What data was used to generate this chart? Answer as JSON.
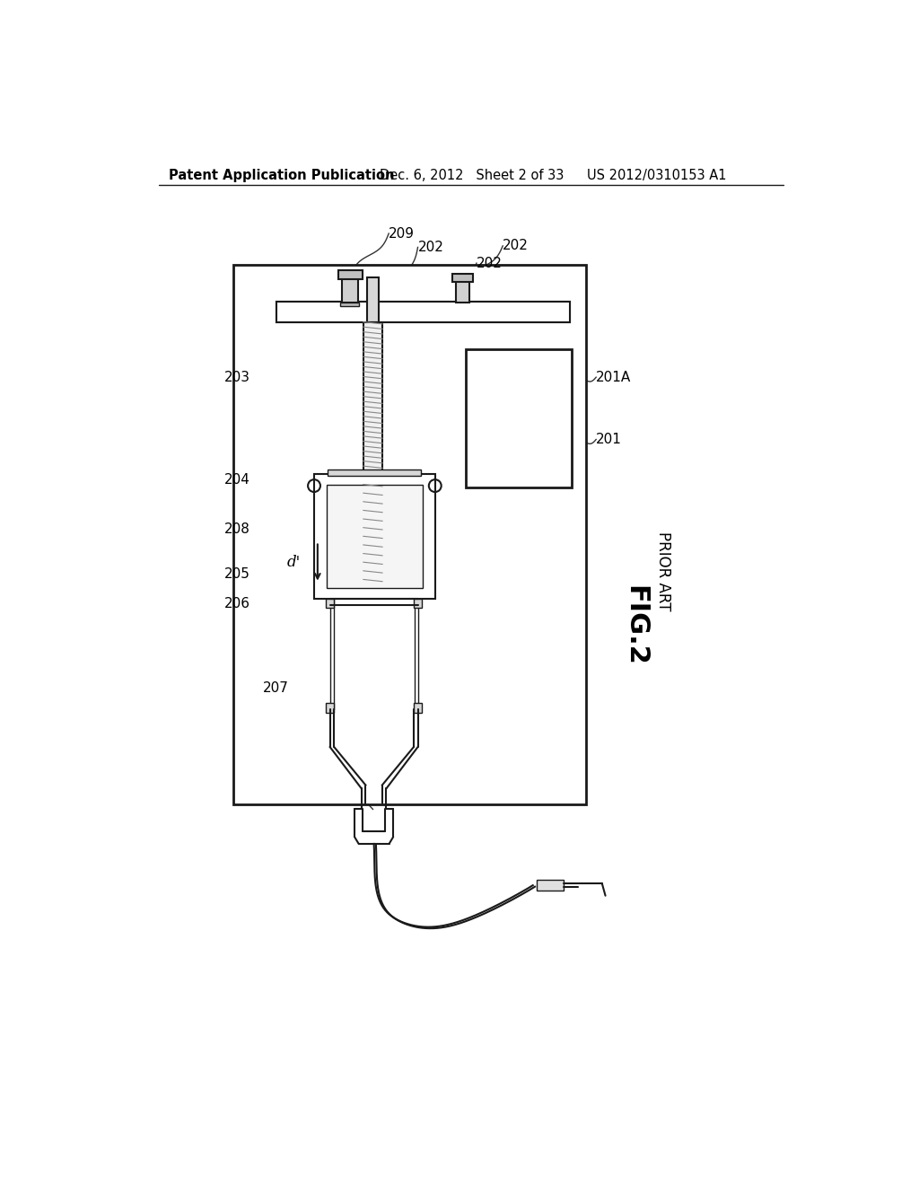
{
  "bg_color": "#ffffff",
  "header_left": "Patent Application Publication",
  "header_mid": "Dec. 6, 2012   Sheet 2 of 33",
  "header_right": "US 2012/0310153 A1",
  "line_color": "#1a1a1a",
  "fig_label": "FIG.2",
  "prior_art": "PRIOR ART"
}
